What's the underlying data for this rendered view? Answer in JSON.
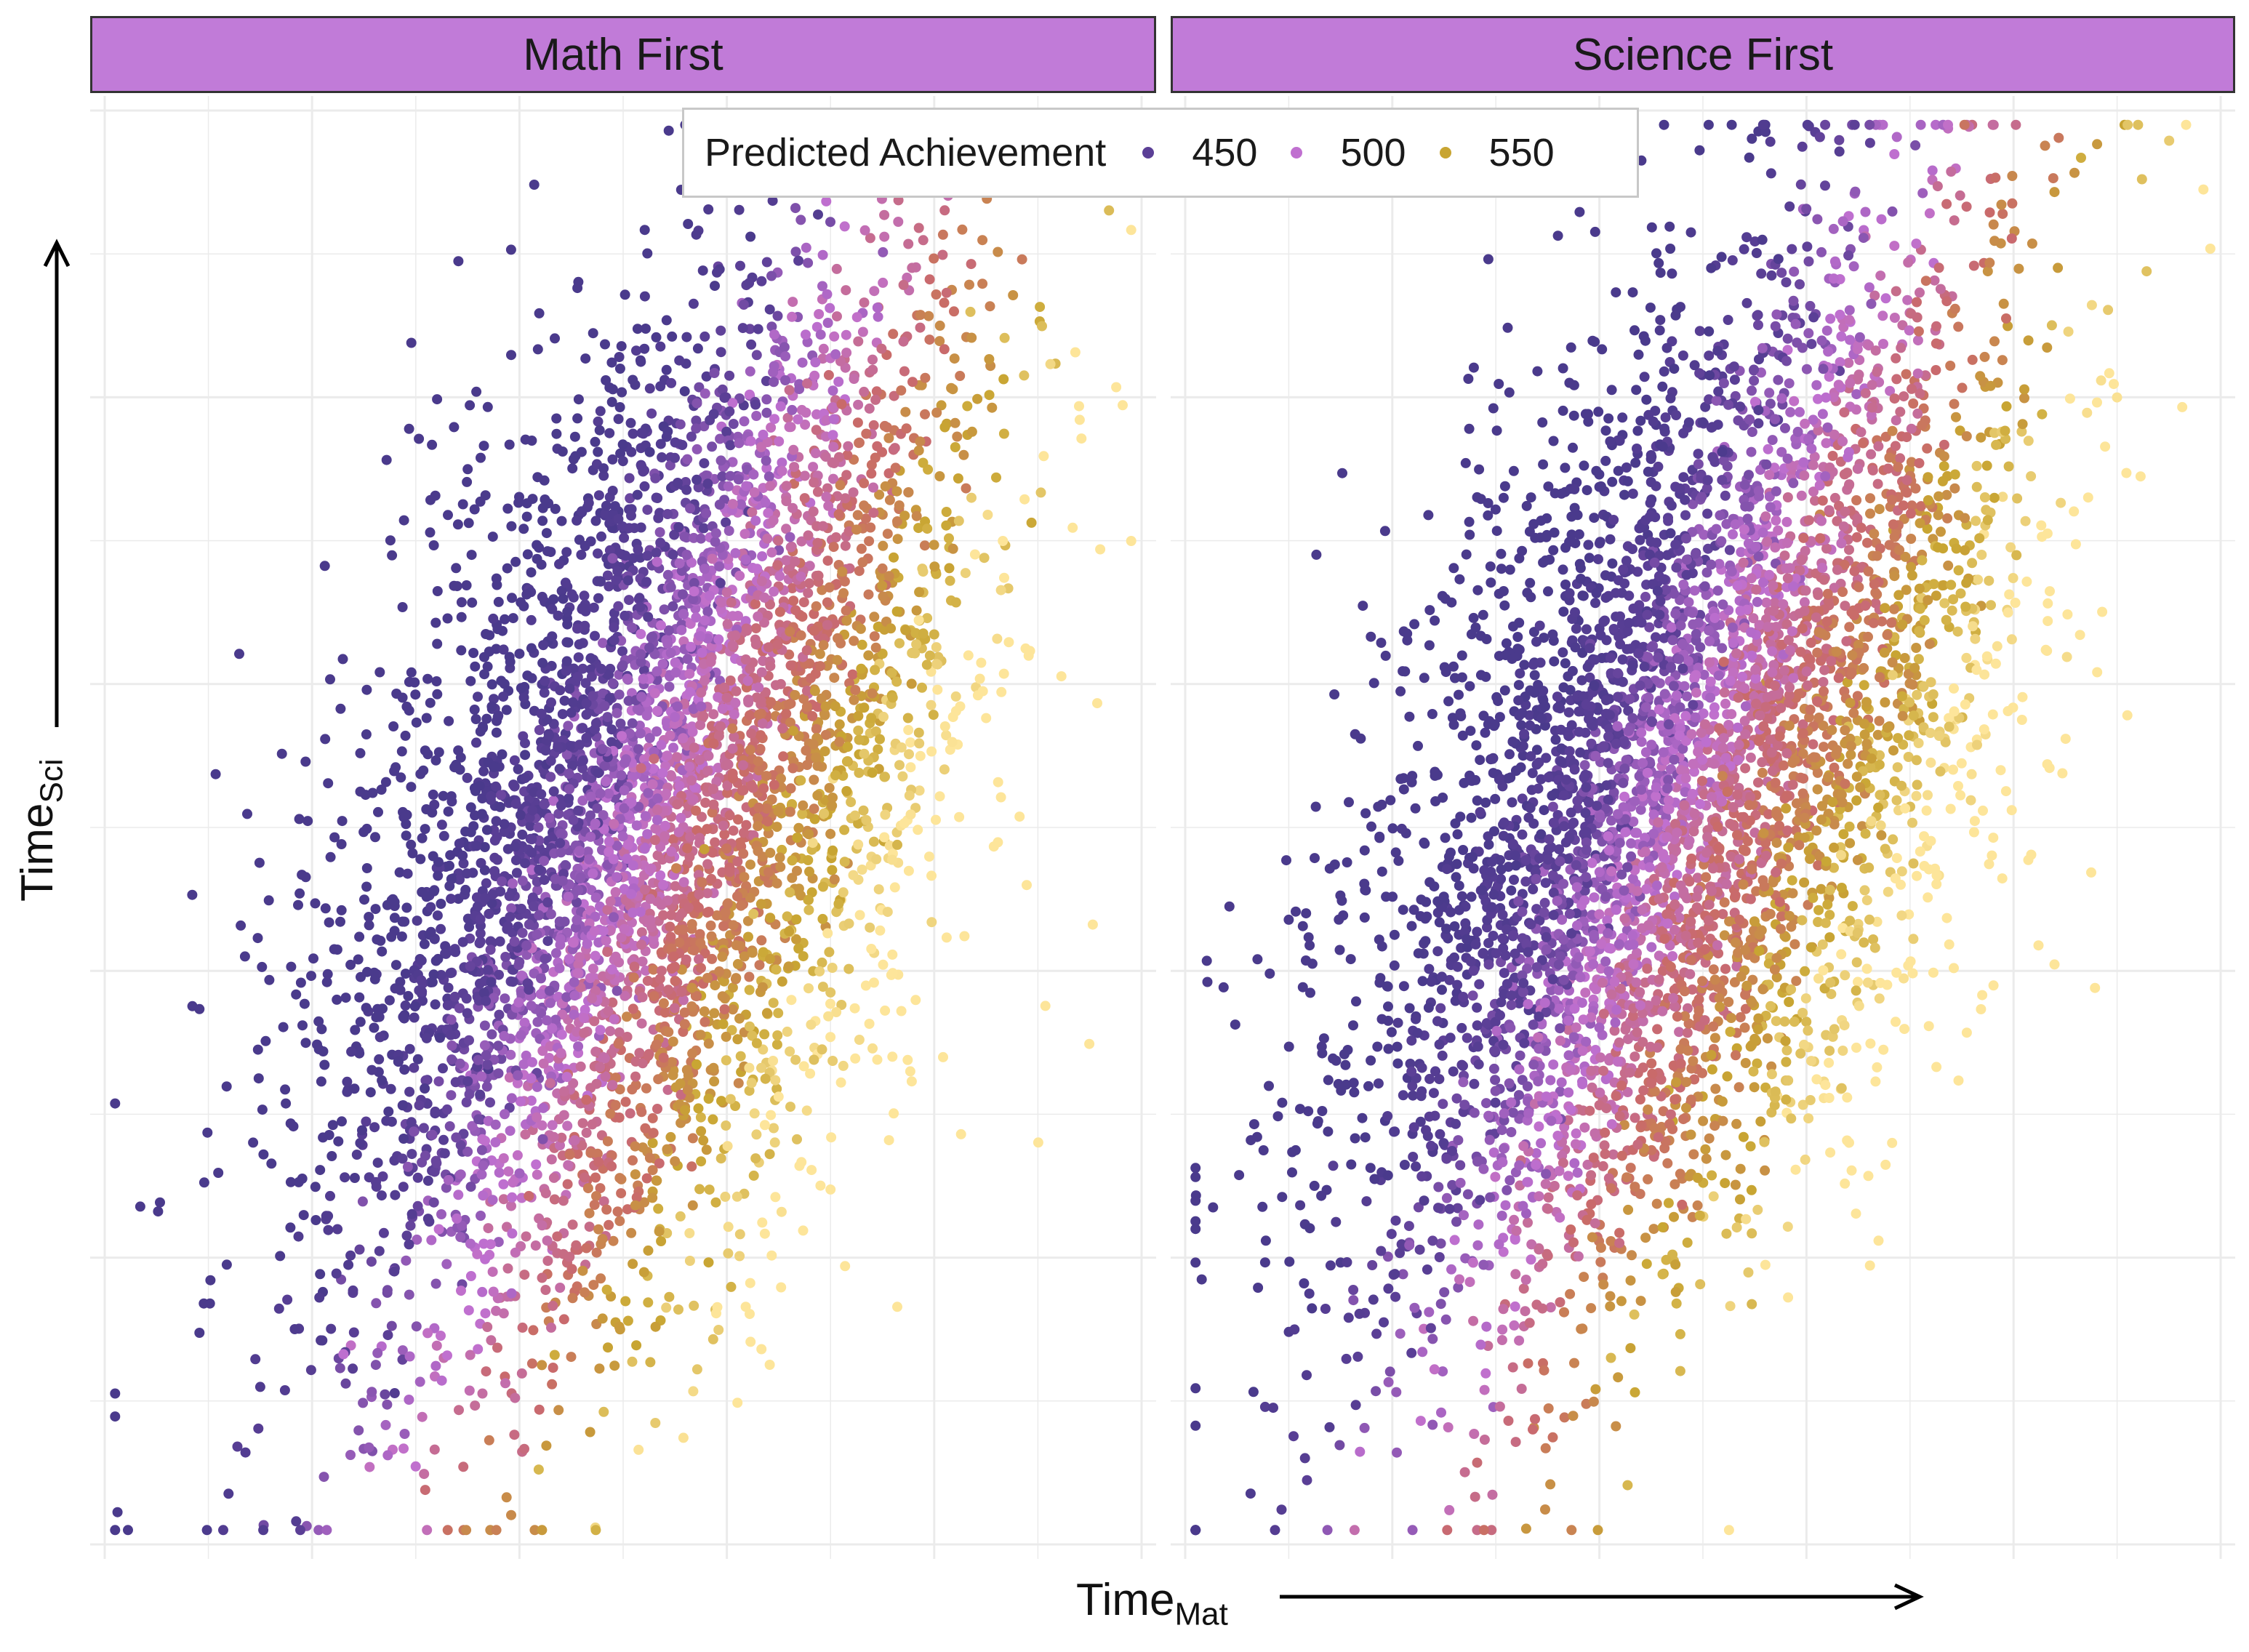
{
  "chart_data": {
    "type": "scatter",
    "title": "",
    "facets": [
      "Math First",
      "Science First"
    ],
    "xlabel": "Time",
    "xlabel_sub": "Mat",
    "ylabel": "Time",
    "ylabel_sub": "Sci",
    "xlim": [
      0,
      10
    ],
    "ylim": [
      0,
      10
    ],
    "grid": true,
    "tick_labels_shown": false,
    "legend": {
      "title": "Predicted Achievement",
      "position": "top-center",
      "entries": [
        {
          "label": "450",
          "color": "#5b3f96"
        },
        {
          "label": "500",
          "color": "#c070d0"
        },
        {
          "label": "550",
          "color": "#c8a532"
        }
      ]
    },
    "color_scale": {
      "min_value": 430,
      "max_value": 600,
      "stops": [
        "#4a3a8c",
        "#5b3f96",
        "#c070d0",
        "#c96a6a",
        "#c8a532",
        "#fde59a"
      ]
    },
    "points_per_panel_approx": 5000,
    "series": [
      {
        "name": "Math First",
        "trend": "positive correlation; achievement increases with TimeMat and decreases with TimeSci",
        "x_center": 5.3,
        "y_center": 5.2,
        "x_sd": 1.55,
        "y_sd": 1.9,
        "correlation": 0.55
      },
      {
        "name": "Science First",
        "trend": "positive correlation; achievement increases with TimeMat and decreases with TimeSci",
        "x_center": 4.8,
        "y_center": 5.3,
        "x_sd": 1.6,
        "y_sd": 1.9,
        "correlation": 0.55
      }
    ]
  },
  "colors": {
    "strip_bg": "#c17bd8",
    "grid": "#ebebeb",
    "text": "#1a1a1a"
  }
}
